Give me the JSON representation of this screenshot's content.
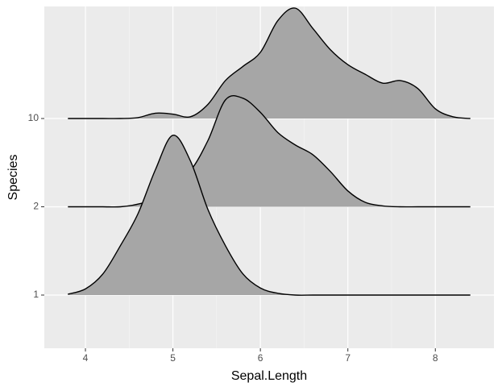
{
  "chart_data": {
    "type": "ridgeline",
    "x_label": "Sepal.Length",
    "y_label": "Species",
    "categories": [
      "1",
      "2",
      "10"
    ],
    "x": [
      3.8,
      4.0,
      4.2,
      4.4,
      4.6,
      4.8,
      5.0,
      5.2,
      5.4,
      5.6,
      5.8,
      6.0,
      6.2,
      6.4,
      6.6,
      6.8,
      7.0,
      7.2,
      7.4,
      7.6,
      7.8,
      8.0,
      8.2,
      8.4
    ],
    "series": [
      {
        "values": [
          0.01,
          0.07,
          0.24,
          0.56,
          0.92,
          1.42,
          1.81,
          1.52,
          0.97,
          0.56,
          0.24,
          0.08,
          0.02,
          0,
          0,
          0,
          0,
          0,
          0,
          0,
          0,
          0,
          0,
          0
        ]
      },
      {
        "values": [
          0,
          0,
          0,
          0,
          0.03,
          0.1,
          0.3,
          0.41,
          0.75,
          1.21,
          1.23,
          1.07,
          0.84,
          0.7,
          0.59,
          0.4,
          0.18,
          0.05,
          0.01,
          0,
          0,
          0,
          0,
          0
        ]
      },
      {
        "values": [
          0,
          0,
          0,
          0,
          0.01,
          0.06,
          0.05,
          0.02,
          0.16,
          0.43,
          0.59,
          0.75,
          1.11,
          1.25,
          1.02,
          0.78,
          0.61,
          0.5,
          0.4,
          0.43,
          0.34,
          0.11,
          0.02,
          0
        ]
      }
    ],
    "color": "#a6a6a6",
    "xlim": [
      3.53,
      8.67
    ],
    "xticks": [
      4,
      5,
      6,
      7,
      8
    ],
    "grid": true
  }
}
